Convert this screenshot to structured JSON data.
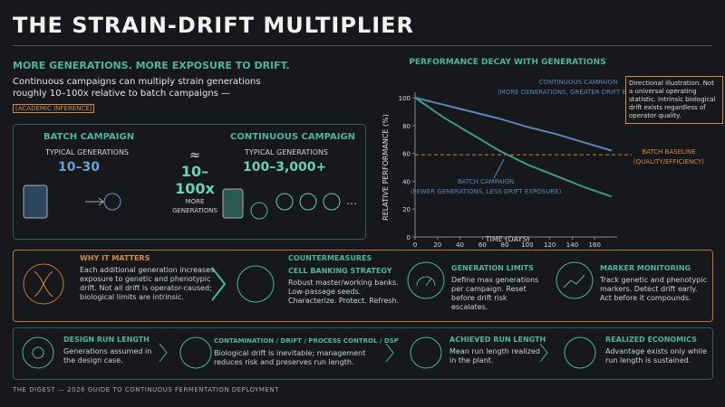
{
  "header": {
    "title": "THE STRAIN-DRIFT MULTIPLIER"
  },
  "intro": {
    "heading": "MORE GENERATIONS. MORE EXPOSURE TO DRIFT.",
    "text": "Continuous campaigns can multiply strain generations roughly 10–100x relative to batch campaigns —",
    "tag": "[ACADEMIC INFERENCE]"
  },
  "comparison": {
    "batch": {
      "title": "BATCH CAMPAIGN",
      "label": "TYPICAL GENERATIONS",
      "value": "10–30"
    },
    "multiplier": {
      "symbol": "≈",
      "value": "10–100x",
      "label": "MORE GENERATIONS"
    },
    "continuous": {
      "title": "CONTINUOUS CAMPAIGN",
      "label": "TYPICAL GENERATIONS",
      "value": "100–3,000+"
    }
  },
  "chart_data": {
    "type": "line",
    "title": "PERFORMANCE DECAY WITH GENERATIONS",
    "x_label": "TIME (DAYS)",
    "y_label": "RELATIVE PERFORMANCE (%)",
    "x": [
      0,
      25,
      50,
      75,
      100,
      125,
      150,
      175
    ],
    "series": [
      {
        "color": "#5b86b8",
        "values": [
          100,
          95,
          90,
          85,
          79,
          74,
          68,
          62
        ]
      },
      {
        "color": "#3f9a7e",
        "values": [
          100,
          86,
          74,
          62,
          52,
          44,
          36,
          29
        ]
      }
    ],
    "baseline": 59,
    "baseline_color": "#c98a45",
    "xlim": [
      0,
      180
    ],
    "xticks": [
      0,
      20,
      40,
      60,
      80,
      100,
      120,
      140,
      160
    ],
    "ylim": [
      0,
      100
    ],
    "yticks": [
      0,
      20,
      40,
      60,
      80,
      100
    ],
    "annotations": {
      "continuous": "CONTINUOUS CAMPAIGN",
      "continuous_note": "(MORE GENERATIONS, GREATER DRIFT EXPOSURE)",
      "batch": "BATCH CAMPAIGN",
      "batch_note": "(FEWER GENERATIONS, LESS DRIFT EXPOSURE)",
      "baseline": "BATCH BASELINE",
      "baseline_note": "(QUALITY/EFFICIENCY)"
    },
    "note": "Directional illustration. Not a universal operating statistic. Intrinsic biological drift exists regardless of operator quality."
  },
  "why": {
    "title": "WHY IT MATTERS",
    "text": "Each additional generation increases exposure to genetic and phenotypic drift. Not all drift is operator-caused; biological limits are intrinsic."
  },
  "countermeasures": {
    "heading": "COUNTERMEASURES",
    "items": [
      {
        "title": "CELL BANKING STRATEGY",
        "text": "Robust master/working banks. Low-passage seeds. Characterize. Protect. Refresh."
      },
      {
        "title": "GENERATION LIMITS",
        "text": "Define max generations per campaign. Reset before drift risk escalates."
      },
      {
        "title": "MARKER MONITORING",
        "text": "Track genetic and phenotypic markers. Detect drift early. Act before it compounds."
      }
    ]
  },
  "flow": [
    {
      "title": "DESIGN RUN LENGTH",
      "text": "Generations assumed in the design case."
    },
    {
      "title": "CONTAMINATION / DRIFT / PROCESS CONTROL / DSP",
      "text": "Biological drift is inevitable; management reduces risk and preserves run length."
    },
    {
      "title": "ACHIEVED RUN LENGTH",
      "text": "Mean run length realized in the plant."
    },
    {
      "title": "REALIZED ECONOMICS",
      "text": "Advantage exists only while run length is sustained."
    }
  ],
  "footer": "THE DIGEST — 2026 GUIDE TO CONTINUOUS FERMENTATION DEPLOYMENT"
}
